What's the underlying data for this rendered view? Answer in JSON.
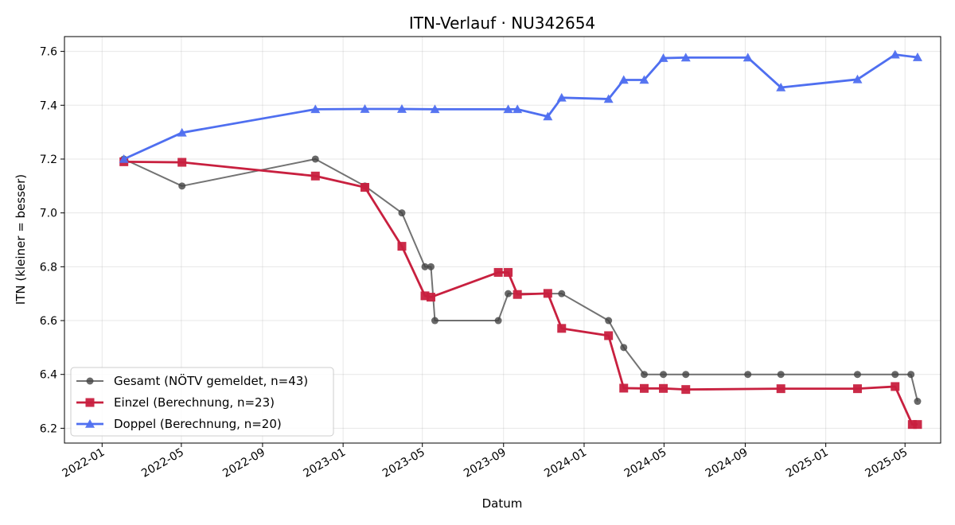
{
  "chart_data": {
    "type": "line",
    "title": "ITN-Verlauf · NU342654",
    "xlabel": "Datum",
    "ylabel": "ITN  (kleiner = besser)",
    "x_axis_type": "date",
    "xlim": [
      "2021-11-05",
      "2025-06-24"
    ],
    "ylim": [
      6.145,
      7.655
    ],
    "x_ticks": [
      "2022-01-01",
      "2022-05-01",
      "2022-09-01",
      "2023-01-01",
      "2023-05-01",
      "2023-09-01",
      "2024-01-01",
      "2024-05-01",
      "2024-09-01",
      "2025-01-01",
      "2025-05-01"
    ],
    "x_tick_labels": [
      "2022-01",
      "2022-05",
      "2022-09",
      "2023-01",
      "2023-05",
      "2023-09",
      "2024-01",
      "2024-05",
      "2024-09",
      "2025-01",
      "2025-05"
    ],
    "y_ticks": [
      6.2,
      6.4,
      6.6,
      6.8,
      7.0,
      7.2,
      7.4,
      7.6
    ],
    "y_tick_labels": [
      "6.2",
      "6.4",
      "6.6",
      "6.8",
      "7.0",
      "7.2",
      "7.4",
      "7.6"
    ],
    "grid": true,
    "legend_position": "lower-left",
    "series": [
      {
        "name": "Gesamt (NÖTV gemeldet, n=43)",
        "color": "#444444",
        "marker": "circle",
        "points": [
          [
            "2022-02-03",
            7.2
          ],
          [
            "2022-05-02",
            7.1
          ],
          [
            "2022-11-20",
            7.2
          ],
          [
            "2023-02-03",
            7.1
          ],
          [
            "2023-03-31",
            7.0
          ],
          [
            "2023-05-05",
            6.8
          ],
          [
            "2023-05-14",
            6.8
          ],
          [
            "2023-05-20",
            6.6
          ],
          [
            "2023-08-24",
            6.6
          ],
          [
            "2023-09-08",
            6.7
          ],
          [
            "2023-11-28",
            6.7
          ],
          [
            "2024-02-07",
            6.6
          ],
          [
            "2024-03-01",
            6.5
          ],
          [
            "2024-04-01",
            6.4
          ],
          [
            "2024-04-30",
            6.4
          ],
          [
            "2024-06-03",
            6.4
          ],
          [
            "2024-09-05",
            6.4
          ],
          [
            "2024-10-25",
            6.4
          ],
          [
            "2025-02-18",
            6.4
          ],
          [
            "2025-04-16",
            6.4
          ],
          [
            "2025-05-10",
            6.4
          ],
          [
            "2025-05-20",
            6.3
          ]
        ]
      },
      {
        "name": "Einzel (Berechnung, n=23)",
        "color": "#c8203f",
        "marker": "square",
        "points": [
          [
            "2022-02-03",
            7.19
          ],
          [
            "2022-05-02",
            7.188
          ],
          [
            "2022-11-20",
            7.137
          ],
          [
            "2023-02-03",
            7.095
          ],
          [
            "2023-03-31",
            6.876
          ],
          [
            "2023-05-05",
            6.692
          ],
          [
            "2023-05-14",
            6.687
          ],
          [
            "2023-08-24",
            6.779
          ],
          [
            "2023-09-08",
            6.779
          ],
          [
            "2023-09-22",
            6.697
          ],
          [
            "2023-11-07",
            6.701
          ],
          [
            "2023-11-28",
            6.571
          ],
          [
            "2024-02-07",
            6.544
          ],
          [
            "2024-03-01",
            6.349
          ],
          [
            "2024-04-01",
            6.348
          ],
          [
            "2024-04-30",
            6.348
          ],
          [
            "2024-06-03",
            6.344
          ],
          [
            "2024-10-25",
            6.347
          ],
          [
            "2025-02-18",
            6.347
          ],
          [
            "2025-04-16",
            6.355
          ],
          [
            "2025-05-12",
            6.214
          ],
          [
            "2025-05-20",
            6.214
          ]
        ]
      },
      {
        "name": "Doppel (Berechnung, n=20)",
        "color": "#4f6ff0",
        "marker": "triangle",
        "points": [
          [
            "2022-02-03",
            7.2
          ],
          [
            "2022-05-02",
            7.298
          ],
          [
            "2022-11-20",
            7.385
          ],
          [
            "2023-02-03",
            7.386
          ],
          [
            "2023-03-31",
            7.386
          ],
          [
            "2023-05-20",
            7.385
          ],
          [
            "2023-09-08",
            7.385
          ],
          [
            "2023-09-22",
            7.385
          ],
          [
            "2023-11-07",
            7.358
          ],
          [
            "2023-11-28",
            7.428
          ],
          [
            "2024-02-07",
            7.423
          ],
          [
            "2024-03-01",
            7.494
          ],
          [
            "2024-04-01",
            7.494
          ],
          [
            "2024-04-30",
            7.575
          ],
          [
            "2024-06-03",
            7.577
          ],
          [
            "2024-09-05",
            7.577
          ],
          [
            "2024-10-25",
            7.466
          ],
          [
            "2025-02-18",
            7.496
          ],
          [
            "2025-04-16",
            7.588
          ],
          [
            "2025-05-20",
            7.578
          ]
        ]
      }
    ]
  }
}
